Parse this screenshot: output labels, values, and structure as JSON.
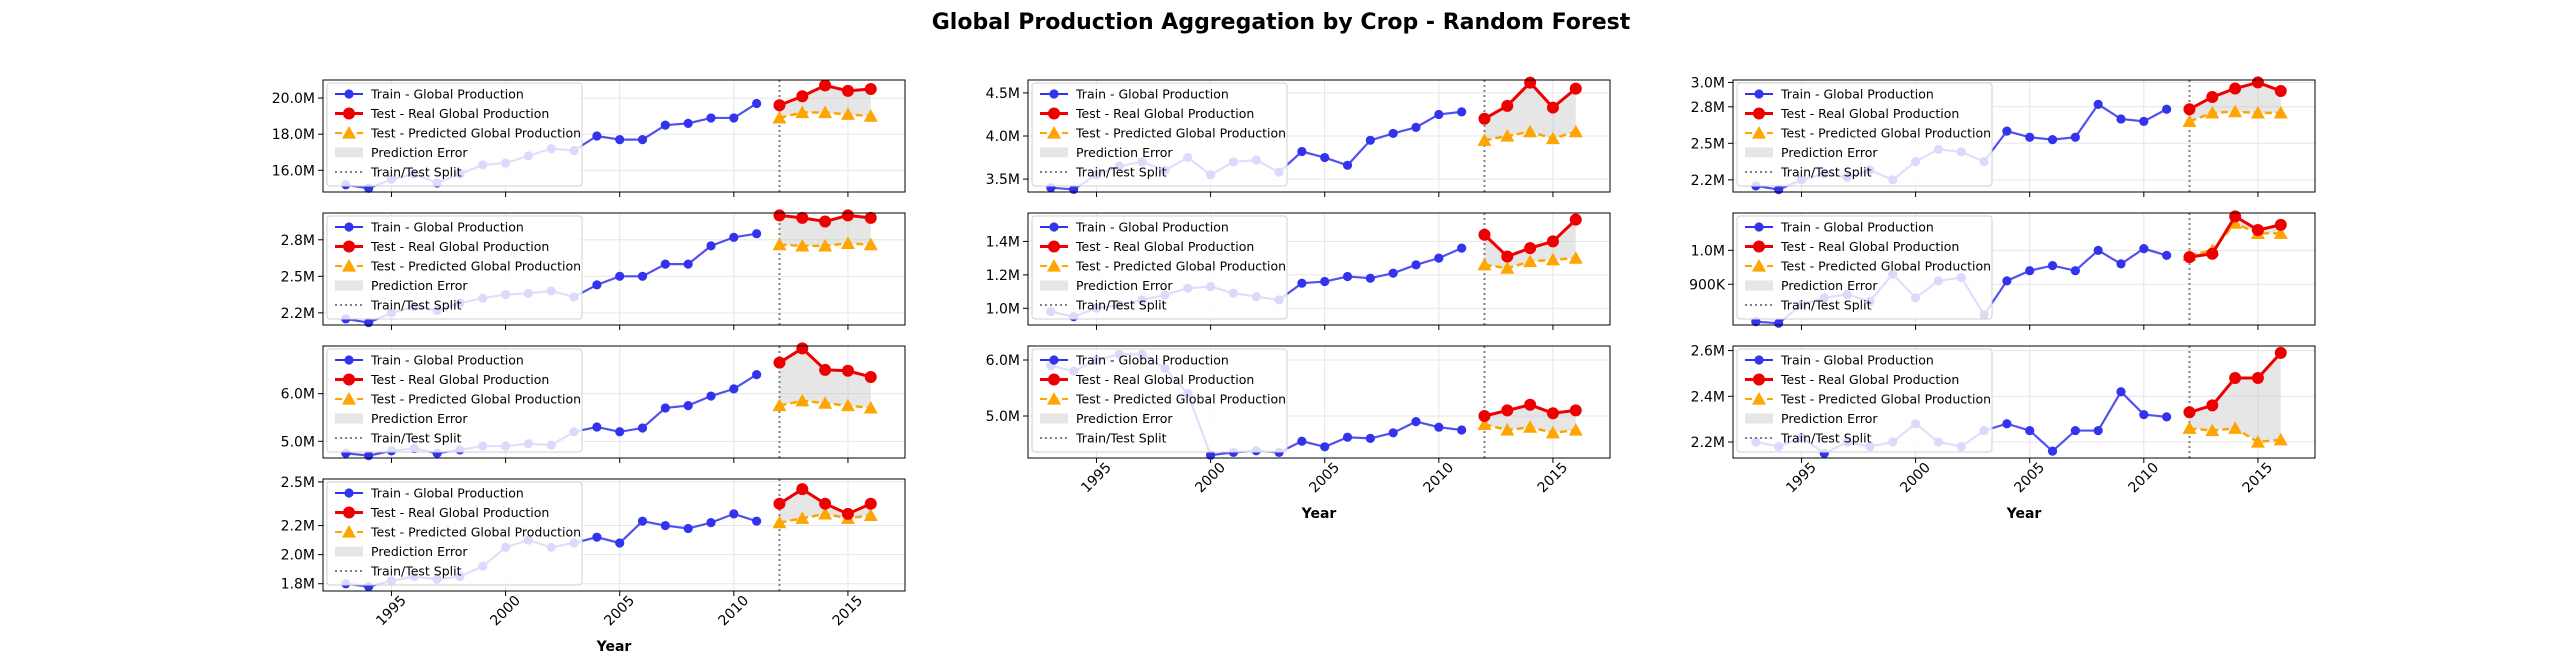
{
  "figure": {
    "title": "Global Production Aggregation by Crop - Random Forest"
  },
  "colors": {
    "train": "#3333ee",
    "test_real": "#ee0000",
    "test_pred": "#ffa500",
    "error_fill": "#c8c8c8",
    "split": "#808080"
  },
  "legend": {
    "train": "Train - Global Production",
    "test_real": "Test - Real Global Production",
    "test_pred": "Test - Predicted Global Production",
    "error": "Prediction Error",
    "split": "Train/Test Split"
  },
  "chart_data": [
    {
      "type": "line",
      "xlabel": "",
      "xlim": [
        1992,
        2017.5
      ],
      "ylim": [
        14.8,
        21.0
      ],
      "y_unit": "M",
      "yticks": [
        16.0,
        18.0,
        20.0
      ],
      "ytick_labels": [
        "16.0M",
        "18.0M",
        "20.0M"
      ],
      "xticks": [
        1995,
        2000,
        2005,
        2010,
        2015
      ],
      "xtick_labels": [],
      "split_x": 2012,
      "train": {
        "x": [
          1993,
          1994,
          1995,
          1996,
          1997,
          1998,
          1999,
          2000,
          2001,
          2002,
          2003,
          2004,
          2005,
          2006,
          2007,
          2008,
          2009,
          2010,
          2011
        ],
        "y": [
          15.2,
          15.0,
          15.5,
          15.8,
          15.3,
          15.8,
          16.3,
          16.4,
          16.8,
          17.2,
          17.1,
          17.9,
          17.7,
          17.7,
          18.5,
          18.6,
          18.9,
          18.9,
          19.7
        ]
      },
      "test_real": {
        "x": [
          2012,
          2013,
          2014,
          2015,
          2016
        ],
        "y": [
          19.6,
          20.1,
          20.7,
          20.4,
          20.5
        ]
      },
      "test_pred": {
        "x": [
          2012,
          2013,
          2014,
          2015,
          2016
        ],
        "y": [
          18.9,
          19.2,
          19.2,
          19.1,
          19.0
        ]
      }
    },
    {
      "type": "line",
      "xlabel": "",
      "xlim": [
        1992,
        2017.5
      ],
      "ylim": [
        3.35,
        4.65
      ],
      "y_unit": "M",
      "yticks": [
        3.5,
        4.0,
        4.5
      ],
      "ytick_labels": [
        "3.5M",
        "4.0M",
        "4.5M"
      ],
      "xticks": [
        1995,
        2000,
        2005,
        2010,
        2015
      ],
      "xtick_labels": [],
      "split_x": 2012,
      "train": {
        "x": [
          1993,
          1994,
          1995,
          1996,
          1997,
          1998,
          1999,
          2000,
          2001,
          2002,
          2003,
          2004,
          2005,
          2006,
          2007,
          2008,
          2009,
          2010,
          2011
        ],
        "y": [
          3.4,
          3.38,
          3.55,
          3.65,
          3.7,
          3.6,
          3.75,
          3.55,
          3.7,
          3.72,
          3.58,
          3.82,
          3.75,
          3.66,
          3.95,
          4.03,
          4.1,
          4.25,
          4.28
        ]
      },
      "test_real": {
        "x": [
          2012,
          2013,
          2014,
          2015,
          2016
        ],
        "y": [
          4.2,
          4.35,
          4.62,
          4.33,
          4.55
        ]
      },
      "test_pred": {
        "x": [
          2012,
          2013,
          2014,
          2015,
          2016
        ],
        "y": [
          3.95,
          4.0,
          4.05,
          3.97,
          4.05
        ]
      }
    },
    {
      "type": "line",
      "xlabel": "",
      "xlim": [
        1992,
        2017.5
      ],
      "ylim": [
        2.1,
        3.02
      ],
      "y_unit": "M",
      "yticks": [
        2.2,
        2.5,
        2.8,
        3.0
      ],
      "ytick_labels": [
        "2.2M",
        "2.5M",
        "2.8M",
        "3.0M"
      ],
      "xticks": [
        1995,
        2000,
        2005,
        2010,
        2015
      ],
      "xtick_labels": [],
      "split_x": 2012,
      "train": {
        "x": [
          1993,
          1994,
          1995,
          1996,
          1997,
          1998,
          1999,
          2000,
          2001,
          2002,
          2003,
          2004,
          2005,
          2006,
          2007,
          2008,
          2009,
          2010,
          2011
        ],
        "y": [
          2.15,
          2.12,
          2.2,
          2.25,
          2.22,
          2.28,
          2.2,
          2.35,
          2.45,
          2.43,
          2.35,
          2.6,
          2.55,
          2.53,
          2.55,
          2.82,
          2.7,
          2.68,
          2.78
        ]
      },
      "test_real": {
        "x": [
          2012,
          2013,
          2014,
          2015,
          2016
        ],
        "y": [
          2.78,
          2.88,
          2.95,
          3.0,
          2.93
        ]
      },
      "test_pred": {
        "x": [
          2012,
          2013,
          2014,
          2015,
          2016
        ],
        "y": [
          2.68,
          2.75,
          2.76,
          2.75,
          2.75
        ]
      }
    },
    {
      "type": "line",
      "xlabel": "",
      "xlim": [
        1992,
        2017.5
      ],
      "ylim": [
        2.1,
        3.02
      ],
      "y_unit": "M",
      "yticks": [
        2.2,
        2.5,
        2.8
      ],
      "ytick_labels": [
        "2.2M",
        "2.5M",
        "2.8M"
      ],
      "xticks": [
        1995,
        2000,
        2005,
        2010,
        2015
      ],
      "xtick_labels": [],
      "split_x": 2012,
      "train": {
        "x": [
          1993,
          1994,
          1995,
          1996,
          1997,
          1998,
          1999,
          2000,
          2001,
          2002,
          2003,
          2004,
          2005,
          2006,
          2007,
          2008,
          2009,
          2010,
          2011
        ],
        "y": [
          2.15,
          2.12,
          2.2,
          2.25,
          2.22,
          2.28,
          2.32,
          2.35,
          2.36,
          2.38,
          2.33,
          2.43,
          2.5,
          2.5,
          2.6,
          2.6,
          2.75,
          2.82,
          2.85
        ]
      },
      "test_real": {
        "x": [
          2012,
          2013,
          2014,
          2015,
          2016
        ],
        "y": [
          3.0,
          2.98,
          2.95,
          3.0,
          2.98
        ]
      },
      "test_pred": {
        "x": [
          2012,
          2013,
          2014,
          2015,
          2016
        ],
        "y": [
          2.76,
          2.75,
          2.75,
          2.77,
          2.76
        ]
      }
    },
    {
      "type": "line",
      "xlabel": "",
      "xlim": [
        1992,
        2017.5
      ],
      "ylim": [
        0.9,
        1.57
      ],
      "y_unit": "M",
      "yticks": [
        1.0,
        1.2,
        1.4
      ],
      "ytick_labels": [
        "1.0M",
        "1.2M",
        "1.4M"
      ],
      "xticks": [
        1995,
        2000,
        2005,
        2010,
        2015
      ],
      "xtick_labels": [],
      "split_x": 2012,
      "train": {
        "x": [
          1993,
          1994,
          1995,
          1996,
          1997,
          1998,
          1999,
          2000,
          2001,
          2002,
          2003,
          2004,
          2005,
          2006,
          2007,
          2008,
          2009,
          2010,
          2011
        ],
        "y": [
          0.98,
          0.95,
          1.0,
          1.02,
          1.05,
          1.08,
          1.12,
          1.13,
          1.09,
          1.07,
          1.05,
          1.15,
          1.16,
          1.19,
          1.18,
          1.21,
          1.26,
          1.3,
          1.36
        ]
      },
      "test_real": {
        "x": [
          2012,
          2013,
          2014,
          2015,
          2016
        ],
        "y": [
          1.44,
          1.31,
          1.36,
          1.4,
          1.53
        ]
      },
      "test_pred": {
        "x": [
          2012,
          2013,
          2014,
          2015,
          2016
        ],
        "y": [
          1.26,
          1.24,
          1.28,
          1.29,
          1.3
        ]
      }
    },
    {
      "type": "line",
      "xlabel": "",
      "xlim": [
        1992,
        2017.5
      ],
      "ylim": [
        780,
        1110
      ],
      "y_unit": "K",
      "yticks": [
        900,
        1000
      ],
      "ytick_labels": [
        "900K",
        "1.0M"
      ],
      "xticks": [
        1995,
        2000,
        2005,
        2010,
        2015
      ],
      "xtick_labels": [],
      "split_x": 2012,
      "train": {
        "x": [
          1993,
          1994,
          1995,
          1996,
          1997,
          1998,
          1999,
          2000,
          2001,
          2002,
          2003,
          2004,
          2005,
          2006,
          2007,
          2008,
          2009,
          2010,
          2011
        ],
        "y": [
          790,
          785,
          840,
          860,
          870,
          850,
          930,
          860,
          910,
          920,
          810,
          910,
          940,
          955,
          940,
          1000,
          960,
          1005,
          985
        ]
      },
      "test_real": {
        "x": [
          2012,
          2013,
          2014,
          2015,
          2016
        ],
        "y": [
          980,
          990,
          1100,
          1060,
          1075
        ]
      },
      "test_pred": {
        "x": [
          2012,
          2013,
          2014,
          2015,
          2016
        ],
        "y": [
          985,
          1000,
          1080,
          1050,
          1050
        ]
      }
    },
    {
      "type": "line",
      "xlabel": "",
      "xlim": [
        1992,
        2017.5
      ],
      "ylim": [
        4.65,
        7.0
      ],
      "y_unit": "M",
      "yticks": [
        5.0,
        6.0
      ],
      "ytick_labels": [
        "5.0M",
        "6.0M"
      ],
      "xticks": [
        1995,
        2000,
        2005,
        2010,
        2015
      ],
      "xtick_labels": [],
      "split_x": 2012,
      "train": {
        "x": [
          1993,
          1994,
          1995,
          1996,
          1997,
          1998,
          1999,
          2000,
          2001,
          2002,
          2003,
          2004,
          2005,
          2006,
          2007,
          2008,
          2009,
          2010,
          2011
        ],
        "y": [
          4.75,
          4.7,
          4.8,
          4.85,
          4.75,
          4.82,
          4.9,
          4.9,
          4.95,
          4.92,
          5.2,
          5.3,
          5.2,
          5.28,
          5.7,
          5.75,
          5.95,
          6.1,
          6.4
        ]
      },
      "test_real": {
        "x": [
          2012,
          2013,
          2014,
          2015,
          2016
        ],
        "y": [
          6.65,
          6.95,
          6.5,
          6.48,
          6.35
        ]
      },
      "test_pred": {
        "x": [
          2012,
          2013,
          2014,
          2015,
          2016
        ],
        "y": [
          5.75,
          5.85,
          5.8,
          5.75,
          5.7
        ]
      }
    },
    {
      "type": "line",
      "xlabel": "Year",
      "xlim": [
        1992,
        2017.5
      ],
      "ylim": [
        4.25,
        6.25
      ],
      "y_unit": "M",
      "yticks": [
        5.0,
        6.0
      ],
      "ytick_labels": [
        "5.0M",
        "6.0M"
      ],
      "xticks": [
        1995,
        2000,
        2005,
        2010,
        2015
      ],
      "xtick_labels": [
        "1995",
        "2000",
        "2005",
        "2010",
        "2015"
      ],
      "split_x": 2012,
      "train": {
        "x": [
          1993,
          1994,
          1995,
          1996,
          1997,
          1998,
          1999,
          2000,
          2001,
          2002,
          2003,
          2004,
          2005,
          2006,
          2007,
          2008,
          2009,
          2010,
          2011
        ],
        "y": [
          5.9,
          5.8,
          6.0,
          6.1,
          6.1,
          5.85,
          5.4,
          4.3,
          4.35,
          4.38,
          4.35,
          4.55,
          4.45,
          4.62,
          4.6,
          4.7,
          4.9,
          4.8,
          4.75
        ]
      },
      "test_real": {
        "x": [
          2012,
          2013,
          2014,
          2015,
          2016
        ],
        "y": [
          5.0,
          5.1,
          5.2,
          5.05,
          5.1
        ]
      },
      "test_pred": {
        "x": [
          2012,
          2013,
          2014,
          2015,
          2016
        ],
        "y": [
          4.85,
          4.75,
          4.8,
          4.7,
          4.75
        ]
      }
    },
    {
      "type": "line",
      "xlabel": "Year",
      "xlim": [
        1992,
        2017.5
      ],
      "ylim": [
        2.13,
        2.62
      ],
      "y_unit": "M",
      "yticks": [
        2.2,
        2.4,
        2.6
      ],
      "ytick_labels": [
        "2.2M",
        "2.4M",
        "2.6M"
      ],
      "xticks": [
        1995,
        2000,
        2005,
        2010,
        2015
      ],
      "xtick_labels": [
        "1995",
        "2000",
        "2005",
        "2010",
        "2015"
      ],
      "split_x": 2012,
      "train": {
        "x": [
          1993,
          1994,
          1995,
          1996,
          1997,
          1998,
          1999,
          2000,
          2001,
          2002,
          2003,
          2004,
          2005,
          2006,
          2007,
          2008,
          2009,
          2010,
          2011
        ],
        "y": [
          2.2,
          2.18,
          2.22,
          2.15,
          2.2,
          2.18,
          2.2,
          2.28,
          2.2,
          2.18,
          2.25,
          2.28,
          2.25,
          2.16,
          2.25,
          2.25,
          2.42,
          2.32,
          2.31
        ]
      },
      "test_real": {
        "x": [
          2012,
          2013,
          2014,
          2015,
          2016
        ],
        "y": [
          2.33,
          2.36,
          2.48,
          2.48,
          2.59
        ]
      },
      "test_pred": {
        "x": [
          2012,
          2013,
          2014,
          2015,
          2016
        ],
        "y": [
          2.26,
          2.25,
          2.26,
          2.2,
          2.21
        ]
      }
    },
    {
      "type": "line",
      "xlabel": "Year",
      "xlim": [
        1992,
        2017.5
      ],
      "ylim": [
        1.75,
        2.52
      ],
      "y_unit": "M",
      "yticks": [
        1.8,
        2.0,
        2.2,
        2.5
      ],
      "ytick_labels": [
        "1.8M",
        "2.0M",
        "2.2M",
        "2.5M"
      ],
      "xticks": [
        1995,
        2000,
        2005,
        2010,
        2015
      ],
      "xtick_labels": [
        "1995",
        "2000",
        "2005",
        "2010",
        "2015"
      ],
      "split_x": 2012,
      "train": {
        "x": [
          1993,
          1994,
          1995,
          1996,
          1997,
          1998,
          1999,
          2000,
          2001,
          2002,
          2003,
          2004,
          2005,
          2006,
          2007,
          2008,
          2009,
          2010,
          2011
        ],
        "y": [
          1.8,
          1.78,
          1.82,
          1.85,
          1.83,
          1.85,
          1.92,
          2.05,
          2.1,
          2.05,
          2.08,
          2.12,
          2.08,
          2.23,
          2.2,
          2.18,
          2.22,
          2.28,
          2.23
        ]
      },
      "test_real": {
        "x": [
          2012,
          2013,
          2014,
          2015,
          2016
        ],
        "y": [
          2.35,
          2.45,
          2.35,
          2.28,
          2.35
        ]
      },
      "test_pred": {
        "x": [
          2012,
          2013,
          2014,
          2015,
          2016
        ],
        "y": [
          2.22,
          2.25,
          2.28,
          2.25,
          2.27
        ]
      }
    }
  ]
}
